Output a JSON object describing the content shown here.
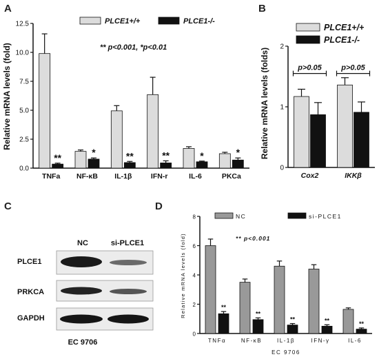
{
  "panel_labels": [
    "A",
    "B",
    "C",
    "D"
  ],
  "chart_data": [
    {
      "panel": "A",
      "type": "bar",
      "categories": [
        "TNFa",
        "NF-κB",
        "IL-1β",
        "IFN-r",
        "IL-6",
        "PKCa"
      ],
      "series": [
        {
          "name": "PLCE1+/+",
          "values": [
            9.9,
            1.45,
            4.95,
            6.35,
            1.7,
            1.25
          ],
          "errors": [
            1.7,
            0.12,
            0.45,
            1.5,
            0.15,
            0.12
          ],
          "color": "#dcdcdc"
        },
        {
          "name": "PLCE1-/-",
          "values": [
            0.35,
            0.78,
            0.48,
            0.45,
            0.55,
            0.7
          ],
          "errors": [
            0.08,
            0.1,
            0.1,
            0.18,
            0.06,
            0.18
          ],
          "color": "#111111"
        }
      ],
      "significance": [
        "**",
        "*",
        "**",
        "**",
        "*",
        "*"
      ],
      "annotation": "** p<0.001, *p<0.01",
      "ylabel": "Relative mRNA levels (fold)",
      "ylim": [
        0,
        12.5
      ],
      "yticks": [
        "0.0",
        "2.5",
        "5.0",
        "7.5",
        "10.0",
        "12.5"
      ]
    },
    {
      "panel": "B",
      "type": "bar",
      "categories": [
        "Cox2",
        "IKKβ"
      ],
      "series": [
        {
          "name": "PLCE1+/+",
          "values": [
            1.17,
            1.36
          ],
          "errors": [
            0.12,
            0.12
          ],
          "color": "#dcdcdc"
        },
        {
          "name": "PLCE1-/-",
          "values": [
            0.87,
            0.91
          ],
          "errors": [
            0.2,
            0.17
          ],
          "color": "#111111"
        }
      ],
      "comparisons": [
        "p>0.05",
        "p>0.05"
      ],
      "ylabel": "Relative mRNA levels (folds)",
      "ylim": [
        0,
        2
      ],
      "yticks": [
        "0",
        "1",
        "2"
      ]
    },
    {
      "panel": "D",
      "type": "bar",
      "categories": [
        "TNFα",
        "NF-κB",
        "IL-1β",
        "IFN-γ",
        "IL-6"
      ],
      "series": [
        {
          "name": "NC",
          "values": [
            6.0,
            3.5,
            4.6,
            4.4,
            1.65
          ],
          "errors": [
            0.45,
            0.22,
            0.35,
            0.3,
            0.1
          ],
          "color": "#999999"
        },
        {
          "name": "si-PLCE1",
          "values": [
            1.35,
            0.95,
            0.58,
            0.5,
            0.3
          ],
          "errors": [
            0.15,
            0.12,
            0.1,
            0.1,
            0.08
          ],
          "color": "#111111"
        }
      ],
      "significance": [
        "**",
        "**",
        "**",
        "**",
        "**"
      ],
      "annotation": "** p<0.001",
      "ylabel": "Relative mRNA levels (fold)",
      "xlabel": "EC 9706",
      "ylim": [
        0,
        8
      ],
      "yticks": [
        "0",
        "2",
        "4",
        "6",
        "8"
      ]
    }
  ],
  "blot": {
    "columns": [
      "NC",
      "si-PLCE1"
    ],
    "rows": [
      "PLCE1",
      "PRKCA",
      "GAPDH"
    ],
    "cell_line": "EC 9706"
  }
}
